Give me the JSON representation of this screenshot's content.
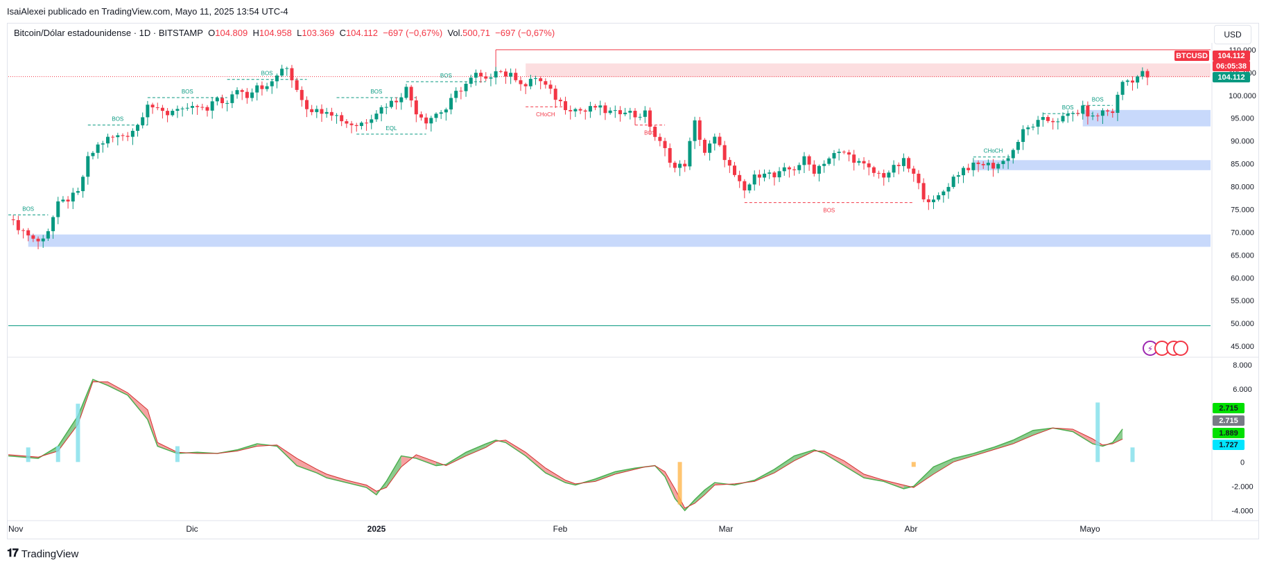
{
  "header": {
    "publisher_line": "IsaiAlexei publicado en TradingView.com, Mayo 11, 2025 13:54 UTC-4"
  },
  "legend": {
    "symbol": "Bitcoin/Dólar estadounidense · 1D · BITSTAMP",
    "o_label": "O",
    "o_value": "104.809",
    "h_label": "H",
    "h_value": "104.958",
    "l_label": "L",
    "l_value": "103.369",
    "c_label": "C",
    "c_value": "104.112",
    "change": "−697 (−0,67%)",
    "vol_label": "Vol.",
    "vol_value": "500,71",
    "vol_change": "−697 (−0,67%)"
  },
  "currency_button": "USD",
  "footer": {
    "brand": "TradingView"
  },
  "colors": {
    "up": "#089981",
    "down": "#f23645",
    "zone": "#c8d9fb",
    "supply": "#fbd0d3"
  },
  "chart_data": [
    {
      "type": "candlestick",
      "series_name": "BTCUSD",
      "price_axis_ticks": [
        "110.000",
        "105.000",
        "100.000",
        "95.000",
        "90.000",
        "85.000",
        "80.000",
        "75.000",
        "70.000",
        "65.000",
        "60.000",
        "55.000",
        "50.000",
        "45.000"
      ],
      "price_axis_values": [
        110000,
        105000,
        100000,
        95000,
        90000,
        85000,
        80000,
        75000,
        70000,
        65000,
        60000,
        55000,
        50000,
        45000
      ],
      "ylim": [
        43500,
        111500
      ],
      "time_labels": [
        "Nov",
        "Dic",
        "2025",
        "Feb",
        "Mar",
        "Abr",
        "Mayo"
      ],
      "current_price_tag": "104.112",
      "countdown_tag": "06:05:38",
      "symbol_tag": "BTCUSD",
      "last_close_tag": "104.112",
      "horizontal_line_value": 49500,
      "high_line_value": 110000,
      "close_path": [
        [
          0,
          72800
        ],
        [
          4,
          69500
        ],
        [
          6,
          67800
        ],
        [
          8,
          70500
        ],
        [
          10,
          76000
        ],
        [
          14,
          78500
        ],
        [
          16,
          86000
        ],
        [
          18,
          89000
        ],
        [
          20,
          90500
        ],
        [
          22,
          91000
        ],
        [
          24,
          91500
        ],
        [
          26,
          93500
        ],
        [
          28,
          98500
        ],
        [
          30,
          96500
        ],
        [
          32,
          96000
        ],
        [
          34,
          97500
        ],
        [
          36,
          96500
        ],
        [
          38,
          97500
        ],
        [
          40,
          96500
        ],
        [
          42,
          99500
        ],
        [
          44,
          98000
        ],
        [
          46,
          101500
        ],
        [
          48,
          100000
        ],
        [
          50,
          102500
        ],
        [
          52,
          101500
        ],
        [
          54,
          104500
        ],
        [
          56,
          106000
        ],
        [
          58,
          101500
        ],
        [
          60,
          97500
        ],
        [
          62,
          96500
        ],
        [
          64,
          97000
        ],
        [
          66,
          95500
        ],
        [
          68,
          94000
        ],
        [
          70,
          93500
        ],
        [
          72,
          94500
        ],
        [
          74,
          96500
        ],
        [
          76,
          98000
        ],
        [
          78,
          99000
        ],
        [
          80,
          101500
        ],
        [
          82,
          96500
        ],
        [
          84,
          94500
        ],
        [
          86,
          96000
        ],
        [
          88,
          97000
        ],
        [
          90,
          100500
        ],
        [
          92,
          102500
        ],
        [
          94,
          104500
        ],
        [
          96,
          103000
        ],
        [
          98,
          106000
        ],
        [
          100,
          104500
        ],
        [
          102,
          104000
        ],
        [
          104,
          102000
        ],
        [
          106,
          104000
        ],
        [
          108,
          102000
        ],
        [
          110,
          99500
        ],
        [
          112,
          97500
        ],
        [
          114,
          97000
        ],
        [
          116,
          96500
        ],
        [
          118,
          97500
        ],
        [
          120,
          96500
        ],
        [
          122,
          96000
        ],
        [
          124,
          97000
        ],
        [
          126,
          95500
        ],
        [
          128,
          96000
        ],
        [
          130,
          91000
        ],
        [
          132,
          88000
        ],
        [
          134,
          84000
        ],
        [
          136,
          85000
        ],
        [
          138,
          94000
        ],
        [
          140,
          87500
        ],
        [
          142,
          90500
        ],
        [
          144,
          86500
        ],
        [
          146,
          82000
        ],
        [
          148,
          79000
        ],
        [
          150,
          82000
        ],
        [
          152,
          83500
        ],
        [
          154,
          82000
        ],
        [
          156,
          83500
        ],
        [
          158,
          84000
        ],
        [
          160,
          86000
        ],
        [
          162,
          83500
        ],
        [
          164,
          85500
        ],
        [
          166,
          87000
        ],
        [
          168,
          87500
        ],
        [
          170,
          86000
        ],
        [
          172,
          84500
        ],
        [
          174,
          83000
        ],
        [
          176,
          82500
        ],
        [
          178,
          84000
        ],
        [
          180,
          85500
        ],
        [
          182,
          82500
        ],
        [
          184,
          78000
        ],
        [
          186,
          76500
        ],
        [
          188,
          79000
        ],
        [
          190,
          82000
        ],
        [
          192,
          84000
        ],
        [
          194,
          84500
        ],
        [
          196,
          85000
        ],
        [
          198,
          84500
        ],
        [
          200,
          85500
        ],
        [
          202,
          88000
        ],
        [
          204,
          92000
        ],
        [
          206,
          93500
        ],
        [
          208,
          94500
        ],
        [
          210,
          94500
        ],
        [
          212,
          95000
        ],
        [
          214,
          96000
        ],
        [
          216,
          97000
        ],
        [
          218,
          95000
        ],
        [
          220,
          96500
        ],
        [
          222,
          96500
        ],
        [
          224,
          103000
        ],
        [
          226,
          103500
        ],
        [
          228,
          104800
        ],
        [
          229,
          104112
        ]
      ],
      "annotations": [
        "BOS",
        "BOS",
        "BOS",
        "BOS",
        "BOS",
        "BOS",
        "EQL",
        "CHoCH",
        "BOS",
        "BOS",
        "CHoCH",
        "BOS",
        "BOS"
      ]
    },
    {
      "type": "area",
      "series_name": "oscillator",
      "axis_ticks": [
        "8.000",
        "6.000",
        "0",
        "-2.000",
        "-4.000"
      ],
      "axis_values": [
        8000,
        6000,
        0,
        -2000,
        -4000
      ],
      "ylim": [
        -4600,
        8400
      ],
      "value_tags": [
        "2.715",
        "2.715",
        "1.889",
        "1.727"
      ],
      "fast_line": [
        [
          0,
          500
        ],
        [
          6,
          300
        ],
        [
          10,
          1300
        ],
        [
          14,
          3800
        ],
        [
          17,
          6800
        ],
        [
          20,
          6300
        ],
        [
          24,
          5500
        ],
        [
          28,
          3500
        ],
        [
          30,
          1300
        ],
        [
          34,
          700
        ],
        [
          38,
          800
        ],
        [
          42,
          700
        ],
        [
          46,
          1000
        ],
        [
          50,
          1500
        ],
        [
          54,
          1300
        ],
        [
          58,
          -300
        ],
        [
          62,
          -900
        ],
        [
          64,
          -1300
        ],
        [
          68,
          -1700
        ],
        [
          72,
          -2100
        ],
        [
          74,
          -2700
        ],
        [
          76,
          -1600
        ],
        [
          79,
          500
        ],
        [
          82,
          300
        ],
        [
          86,
          -300
        ],
        [
          88,
          -200
        ],
        [
          92,
          800
        ],
        [
          96,
          1500
        ],
        [
          98,
          1800
        ],
        [
          100,
          1600
        ],
        [
          104,
          500
        ],
        [
          108,
          -900
        ],
        [
          112,
          -1700
        ],
        [
          114,
          -1900
        ],
        [
          118,
          -1400
        ],
        [
          122,
          -800
        ],
        [
          126,
          -500
        ],
        [
          128,
          -400
        ],
        [
          130,
          -300
        ],
        [
          132,
          -1200
        ],
        [
          134,
          -3000
        ],
        [
          136,
          -4000
        ],
        [
          138,
          -3100
        ],
        [
          140,
          -2300
        ],
        [
          142,
          -1700
        ],
        [
          146,
          -1900
        ],
        [
          150,
          -1500
        ],
        [
          154,
          -600
        ],
        [
          158,
          500
        ],
        [
          162,
          1000
        ],
        [
          164,
          700
        ],
        [
          168,
          -300
        ],
        [
          172,
          -1300
        ],
        [
          176,
          -1600
        ],
        [
          180,
          -2200
        ],
        [
          182,
          -2000
        ],
        [
          186,
          -400
        ],
        [
          190,
          300
        ],
        [
          194,
          700
        ],
        [
          198,
          1200
        ],
        [
          202,
          1800
        ],
        [
          206,
          2600
        ],
        [
          210,
          2800
        ],
        [
          214,
          2500
        ],
        [
          218,
          1500
        ],
        [
          220,
          1300
        ],
        [
          222,
          1600
        ],
        [
          224,
          2715
        ]
      ],
      "slow_line": [
        [
          0,
          600
        ],
        [
          6,
          400
        ],
        [
          10,
          900
        ],
        [
          14,
          3100
        ],
        [
          17,
          6600
        ],
        [
          20,
          6600
        ],
        [
          24,
          5700
        ],
        [
          28,
          4300
        ],
        [
          30,
          1600
        ],
        [
          34,
          800
        ],
        [
          38,
          700
        ],
        [
          42,
          700
        ],
        [
          46,
          900
        ],
        [
          50,
          1300
        ],
        [
          54,
          1400
        ],
        [
          58,
          300
        ],
        [
          62,
          -600
        ],
        [
          64,
          -1000
        ],
        [
          68,
          -1500
        ],
        [
          72,
          -1900
        ],
        [
          74,
          -2400
        ],
        [
          76,
          -2100
        ],
        [
          79,
          -400
        ],
        [
          82,
          600
        ],
        [
          86,
          0
        ],
        [
          88,
          -300
        ],
        [
          92,
          500
        ],
        [
          96,
          1200
        ],
        [
          98,
          1700
        ],
        [
          100,
          1800
        ],
        [
          104,
          800
        ],
        [
          108,
          -500
        ],
        [
          112,
          -1500
        ],
        [
          114,
          -1800
        ],
        [
          118,
          -1600
        ],
        [
          122,
          -1000
        ],
        [
          126,
          -600
        ],
        [
          128,
          -400
        ],
        [
          130,
          -300
        ],
        [
          132,
          -800
        ],
        [
          134,
          -2200
        ],
        [
          136,
          -3800
        ],
        [
          138,
          -3400
        ],
        [
          140,
          -2700
        ],
        [
          142,
          -1900
        ],
        [
          146,
          -1800
        ],
        [
          150,
          -1600
        ],
        [
          154,
          -900
        ],
        [
          158,
          100
        ],
        [
          162,
          900
        ],
        [
          164,
          900
        ],
        [
          168,
          100
        ],
        [
          172,
          -1000
        ],
        [
          176,
          -1500
        ],
        [
          180,
          -1900
        ],
        [
          182,
          -2100
        ],
        [
          186,
          -1000
        ],
        [
          190,
          0
        ],
        [
          194,
          500
        ],
        [
          198,
          1000
        ],
        [
          202,
          1500
        ],
        [
          206,
          2200
        ],
        [
          210,
          2800
        ],
        [
          214,
          2700
        ],
        [
          218,
          1900
        ],
        [
          220,
          1400
        ],
        [
          222,
          1500
        ],
        [
          224,
          1889
        ]
      ]
    }
  ]
}
